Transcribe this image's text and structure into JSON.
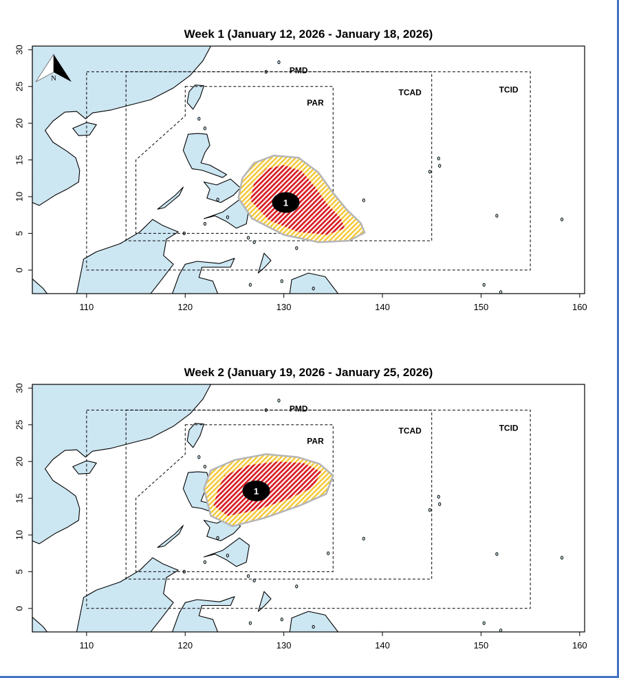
{
  "north_arrow": {
    "label": "N"
  },
  "axes": {
    "x_ticks": [
      110,
      120,
      130,
      140,
      150,
      160
    ],
    "y_ticks": [
      30,
      25,
      20,
      15,
      10,
      5,
      0
    ],
    "x_range": [
      104.5,
      160.5
    ],
    "y_range": [
      -3.2,
      30.5
    ]
  },
  "regions": {
    "pmd": "PMD",
    "tcad": "TCAD",
    "tcid": "TCID",
    "par": "PAR"
  },
  "colors": {
    "land": "#cce6f2",
    "outer_zone": "#f4c93a",
    "inner_zone": "#d91f26",
    "zone_outline": "#b5b5b5",
    "tc_marker": "#000000",
    "frame_accent": "#4472c4"
  },
  "weeks": [
    {
      "title": "Week 1 (January 12, 2026 - January 18, 2026)",
      "tc_label": "1",
      "tc_center": [
        130.2,
        9.2
      ]
    },
    {
      "title": "Week 2 (January 19, 2026 - January 25, 2026)",
      "tc_label": "1",
      "tc_center": [
        127.2,
        16.0
      ]
    }
  ]
}
